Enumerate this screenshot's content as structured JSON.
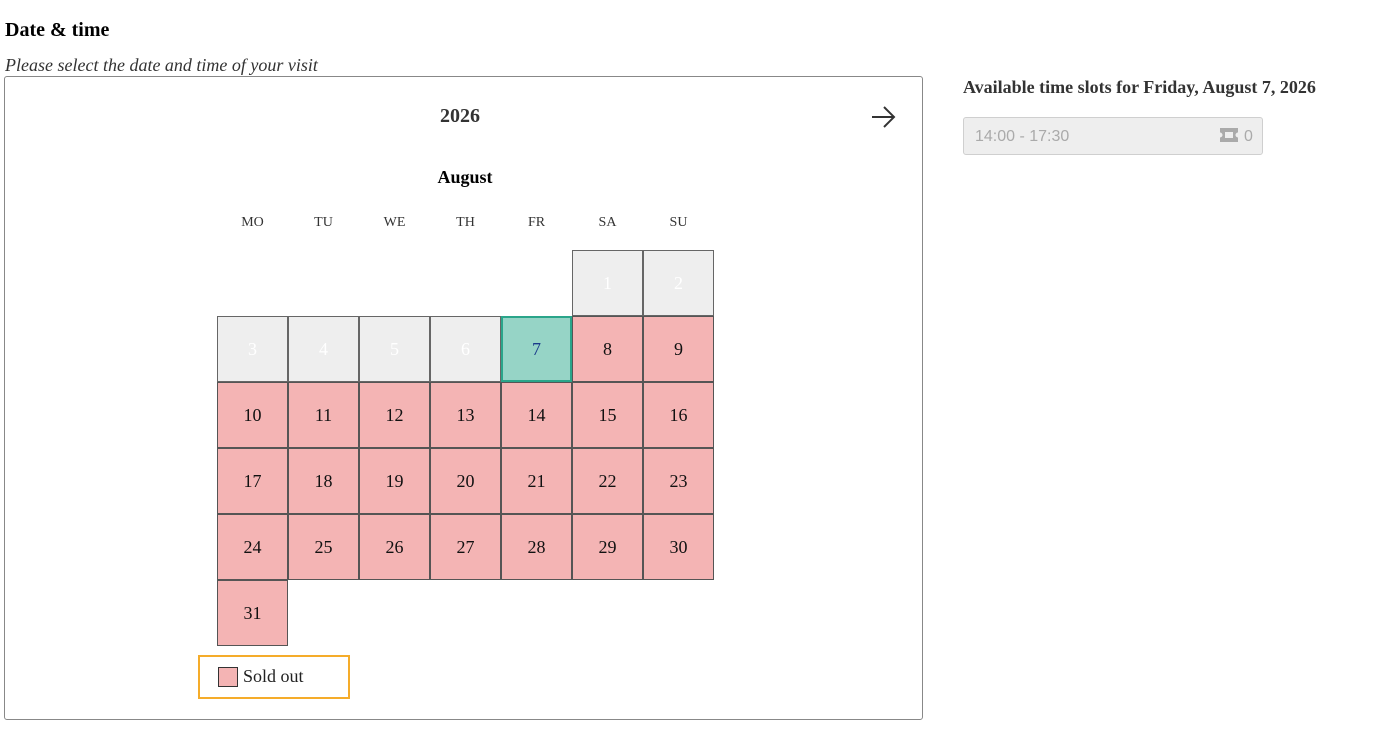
{
  "page": {
    "heading": "Date & time",
    "subtitle": "Please select the date and time of your visit"
  },
  "calendar": {
    "year": "2026",
    "month": "August",
    "weekdays": [
      "MO",
      "TU",
      "WE",
      "TH",
      "FR",
      "SA",
      "SU"
    ],
    "first_weekday_index": 5,
    "days_in_month": 31,
    "past_days": [
      1,
      2,
      3,
      4,
      5,
      6
    ],
    "selected_day": 7,
    "sold_out_from": 8,
    "next_icon": "arrow-right-icon"
  },
  "legend": {
    "sold_out_label": "Sold out"
  },
  "time_slots": {
    "heading": "Available time slots for Friday, August 7, 2026",
    "slots": [
      {
        "time": "14:00 - 17:30",
        "tickets": "0",
        "icon": "ticket-icon"
      }
    ]
  },
  "colors": {
    "sold_out": "#f4b4b4",
    "selected": "#96d4c6",
    "selected_border": "#2aa58a",
    "past": "#eeeeee",
    "legend_border": "#f5ac2a"
  }
}
